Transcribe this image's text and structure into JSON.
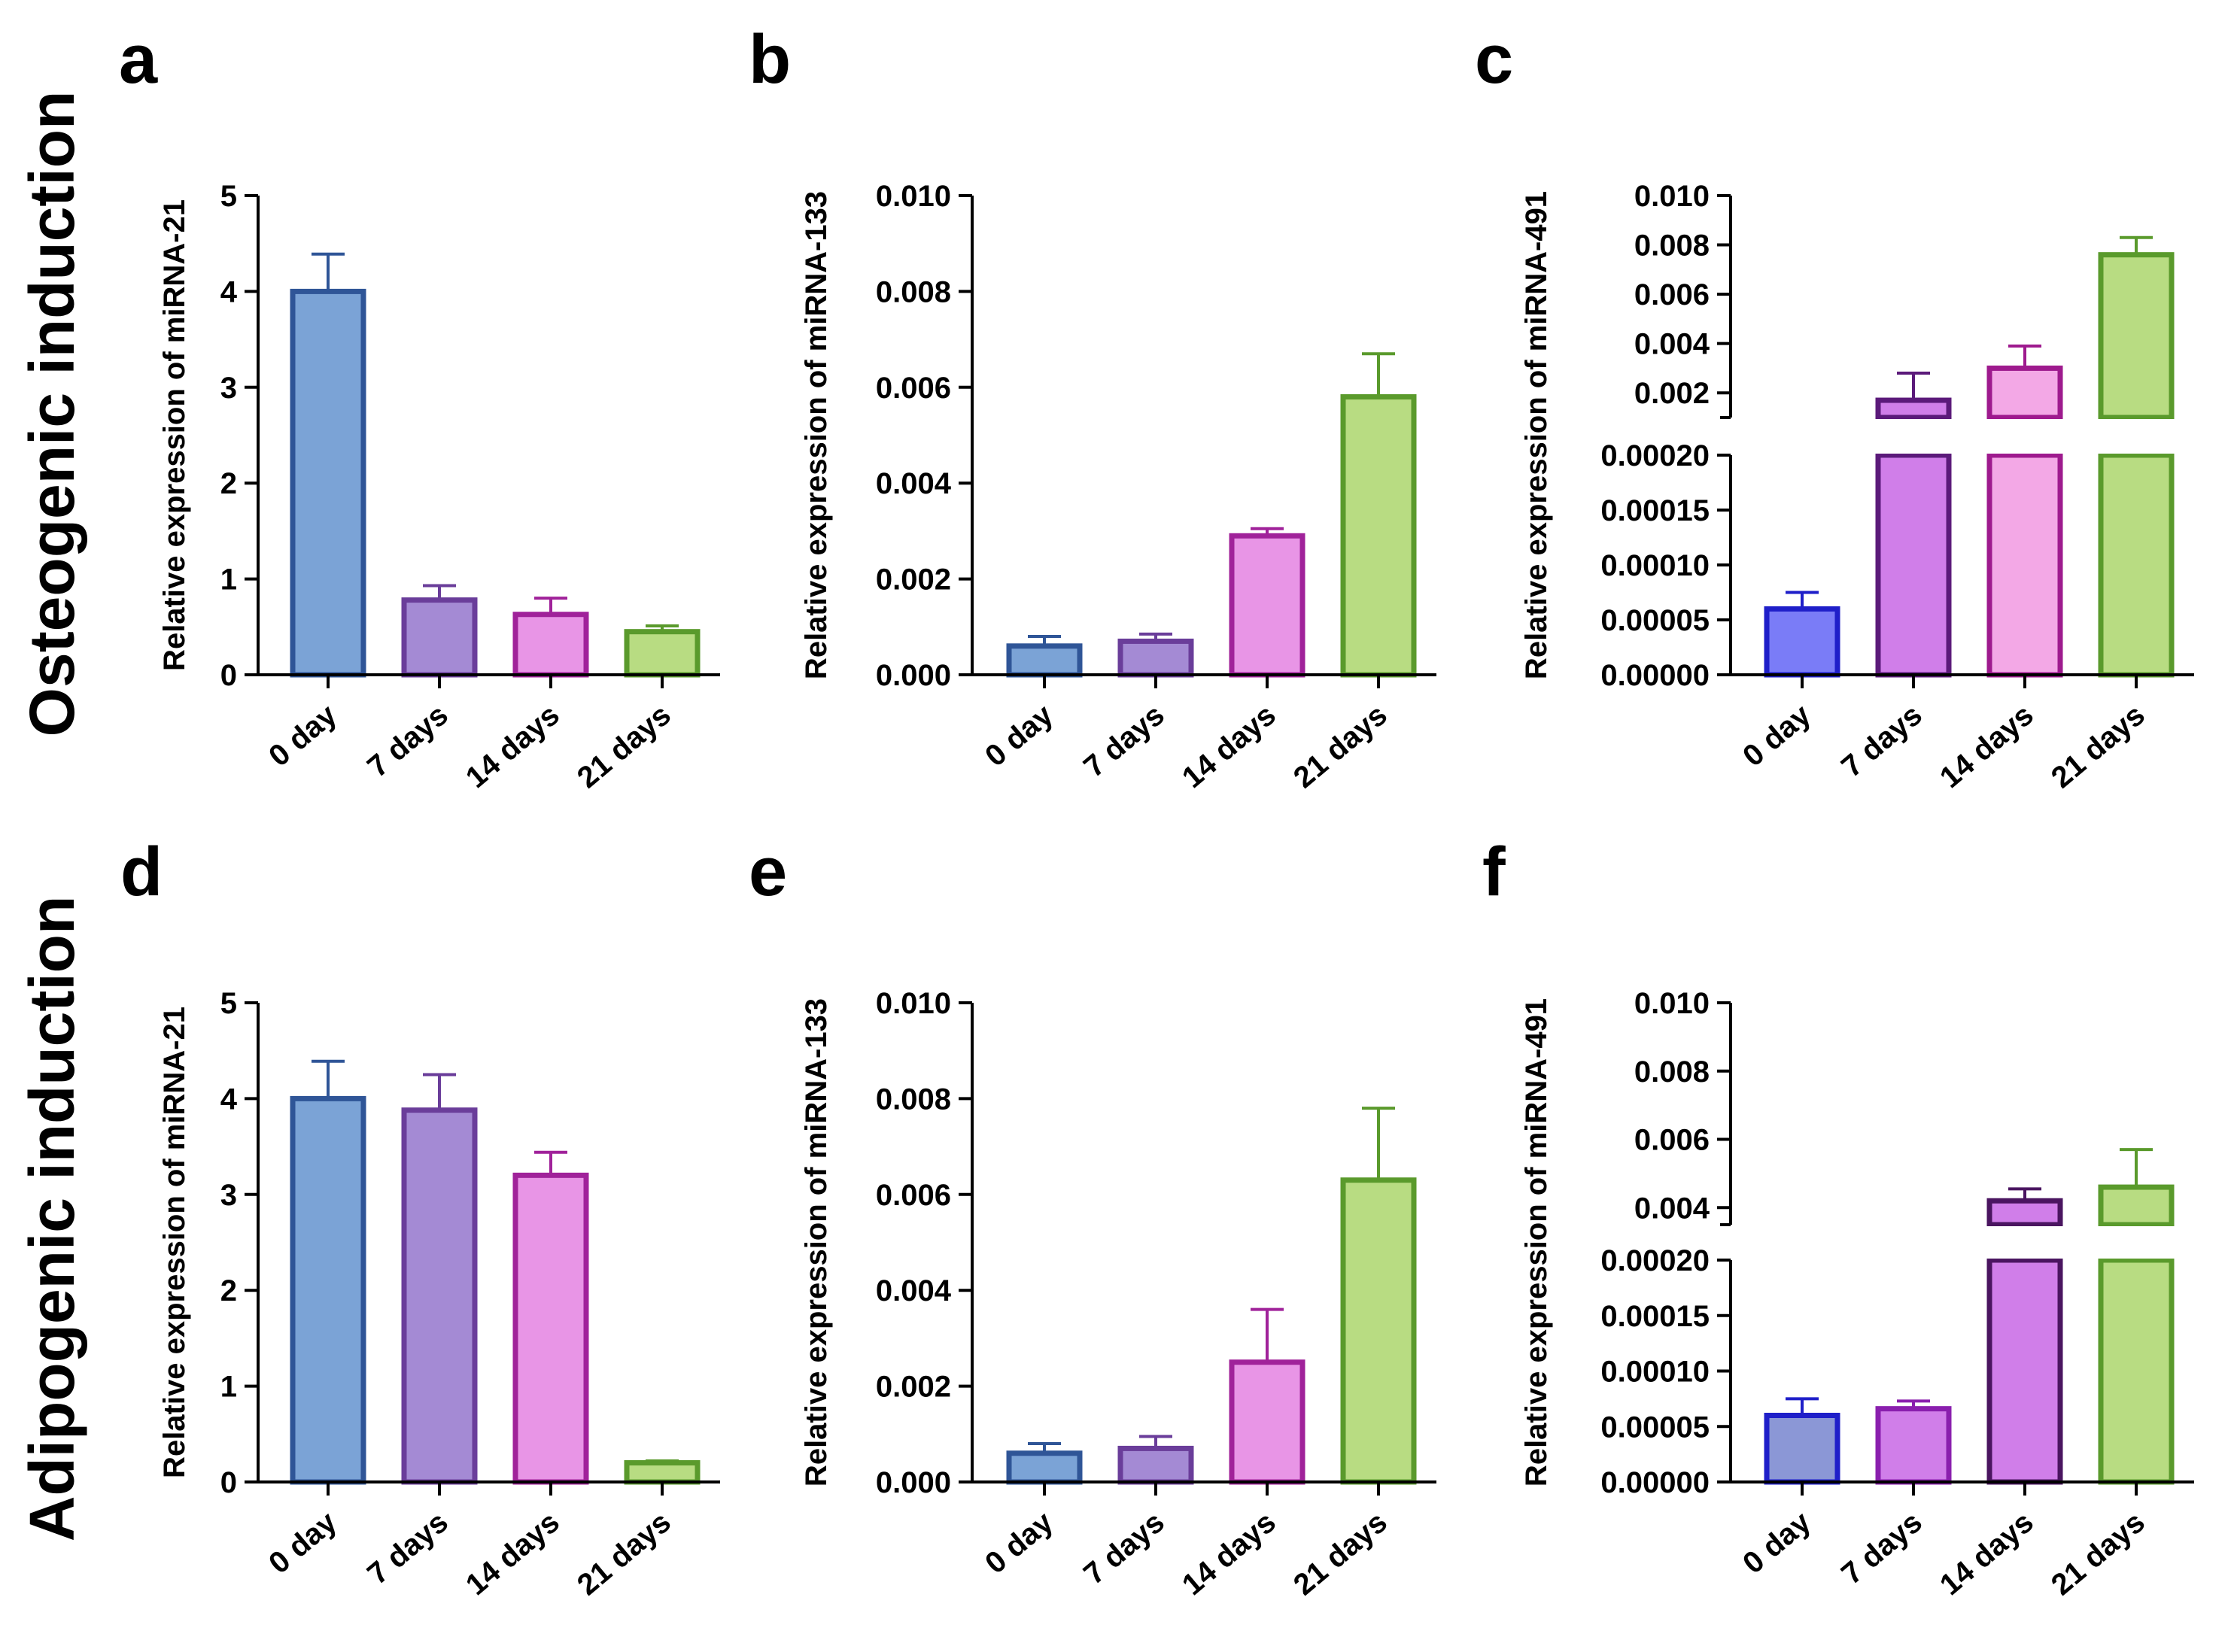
{
  "figure": {
    "row_titles": [
      "Osteogenic induction",
      "Adipogenic induction"
    ]
  },
  "chart_data": [
    {
      "panel": "a",
      "type": "bar",
      "ylabel": "Relative expression of miRNA-21",
      "categories": [
        "0 day",
        "7 days",
        "14 days",
        "21 days"
      ],
      "values": [
        4.0,
        0.78,
        0.63,
        0.45
      ],
      "errors": [
        0.39,
        0.15,
        0.17,
        0.06
      ],
      "ylim": [
        0,
        5
      ],
      "yticks": [
        "0",
        "1",
        "2",
        "3",
        "4",
        "5"
      ],
      "ytick_values": [
        0,
        1,
        2,
        3,
        4,
        5
      ],
      "fills": [
        "#7ba3d6",
        "#a48ad4",
        "#e895e6",
        "#b8dc82"
      ],
      "strokes": [
        "#2f5597",
        "#6a3d9a",
        "#a0229a",
        "#5a9a2c"
      ]
    },
    {
      "panel": "b",
      "type": "bar",
      "ylabel": "Relative expression of miRNA-133",
      "categories": [
        "0 day",
        "7 days",
        "14 days",
        "21 days"
      ],
      "values": [
        0.0006,
        0.0007,
        0.0029,
        0.0058
      ],
      "errors": [
        0.0002,
        0.00015,
        0.00015,
        0.0009
      ],
      "ylim": [
        0,
        0.01
      ],
      "yticks": [
        "0.000",
        "0.002",
        "0.004",
        "0.006",
        "0.008",
        "0.010"
      ],
      "ytick_values": [
        0,
        0.002,
        0.004,
        0.006,
        0.008,
        0.01
      ],
      "fills": [
        "#7ba3d6",
        "#a48ad4",
        "#e895e6",
        "#b8dc82"
      ],
      "strokes": [
        "#2f5597",
        "#6a3d9a",
        "#a0229a",
        "#5a9a2c"
      ]
    },
    {
      "panel": "c",
      "type": "bar",
      "ylabel": "Relative expression of miRNA-491",
      "categories": [
        "0 day",
        "7 days",
        "14 days",
        "21 days"
      ],
      "values": [
        6e-05,
        0.0017,
        0.003,
        0.0076
      ],
      "errors": [
        1.5e-05,
        0.0011,
        0.0009,
        0.0007
      ],
      "lower_segment": {
        "range": [
          0,
          0.0002
        ],
        "ticks": [
          "0.00000",
          "0.00005",
          "0.00010",
          "0.00015",
          "0.00020"
        ],
        "tick_values": [
          0,
          5e-05,
          0.0001,
          0.00015,
          0.0002
        ]
      },
      "upper_segment": {
        "range": [
          0.001,
          0.01
        ],
        "ticks": [
          "0.002",
          "0.004",
          "0.006",
          "0.008",
          "0.010"
        ],
        "tick_values": [
          0.002,
          0.004,
          0.006,
          0.008,
          0.01
        ]
      },
      "fills": [
        "#7a7cf7",
        "#d07ee9",
        "#f3a8e6",
        "#b8dc82"
      ],
      "strokes": [
        "#1f1fc9",
        "#5b1a7a",
        "#9e1a8e",
        "#5a9a2c"
      ]
    },
    {
      "panel": "d",
      "type": "bar",
      "ylabel": "Relative expression of miRNA-21",
      "categories": [
        "0 day",
        "7 days",
        "14 days",
        "21 days"
      ],
      "values": [
        4.0,
        3.88,
        3.2,
        0.2
      ],
      "errors": [
        0.39,
        0.37,
        0.24,
        0.02
      ],
      "ylim": [
        0,
        5
      ],
      "yticks": [
        "0",
        "1",
        "2",
        "3",
        "4",
        "5"
      ],
      "ytick_values": [
        0,
        1,
        2,
        3,
        4,
        5
      ],
      "fills": [
        "#7ba3d6",
        "#a48ad4",
        "#e895e6",
        "#b8dc82"
      ],
      "strokes": [
        "#2f5597",
        "#6a3d9a",
        "#a0229a",
        "#5a9a2c"
      ]
    },
    {
      "panel": "e",
      "type": "bar",
      "ylabel": "Relative expression of miRNA-133",
      "categories": [
        "0 day",
        "7 days",
        "14 days",
        "21 days"
      ],
      "values": [
        0.0006,
        0.0007,
        0.0025,
        0.0063
      ],
      "errors": [
        0.0002,
        0.00025,
        0.0011,
        0.0015
      ],
      "ylim": [
        0,
        0.01
      ],
      "yticks": [
        "0.000",
        "0.002",
        "0.004",
        "0.006",
        "0.008",
        "0.010"
      ],
      "ytick_values": [
        0,
        0.002,
        0.004,
        0.006,
        0.008,
        0.01
      ],
      "fills": [
        "#7ba3d6",
        "#a48ad4",
        "#e895e6",
        "#b8dc82"
      ],
      "strokes": [
        "#2f5597",
        "#6a3d9a",
        "#a0229a",
        "#5a9a2c"
      ]
    },
    {
      "panel": "f",
      "type": "bar",
      "ylabel": "Relative expression of miRNA-491",
      "categories": [
        "0 day",
        "7 days",
        "14 days",
        "21 days"
      ],
      "values": [
        6e-05,
        6.6e-05,
        0.0042,
        0.0046
      ],
      "errors": [
        1.5e-05,
        7e-06,
        0.00035,
        0.0011
      ],
      "lower_segment": {
        "range": [
          0,
          0.0002
        ],
        "ticks": [
          "0.00000",
          "0.00005",
          "0.00010",
          "0.00015",
          "0.00020"
        ],
        "tick_values": [
          0,
          5e-05,
          0.0001,
          0.00015,
          0.0002
        ]
      },
      "upper_segment": {
        "range": [
          0.0035,
          0.01
        ],
        "ticks": [
          "0.004",
          "0.006",
          "0.008",
          "0.010"
        ],
        "tick_values": [
          0.004,
          0.006,
          0.008,
          0.01
        ]
      },
      "fills": [
        "#8b97d6",
        "#d07ee9",
        "#d07ee9",
        "#b8dc82"
      ],
      "strokes": [
        "#1f1fc9",
        "#8a1fae",
        "#4a1560",
        "#5a9a2c"
      ]
    }
  ]
}
